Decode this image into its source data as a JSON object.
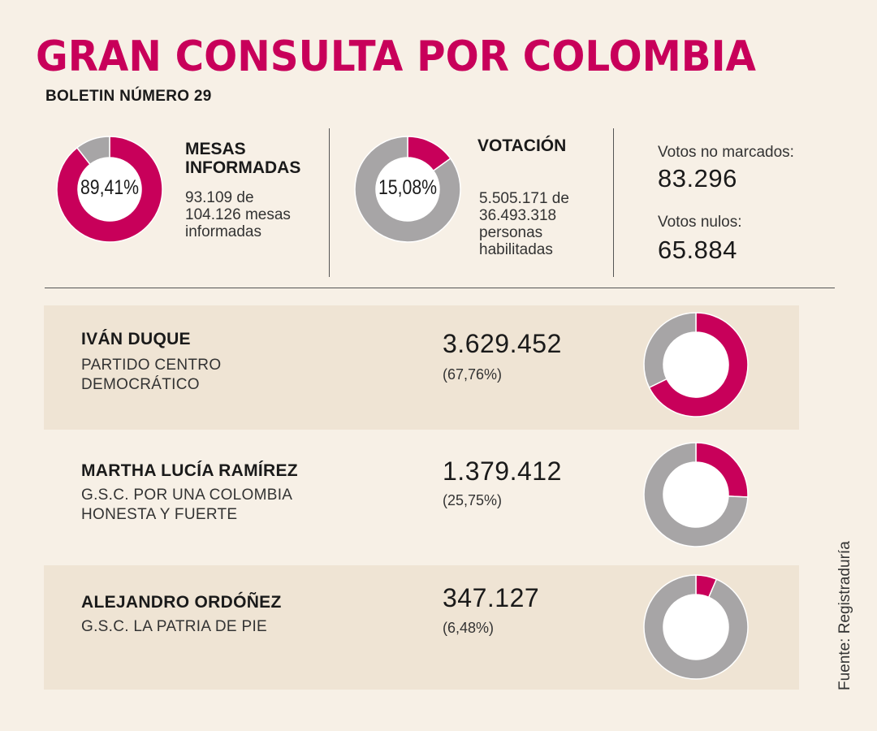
{
  "title": "GRAN CONSULTA POR COLOMBIA",
  "subtitle": "BOLETIN NÚMERO 29",
  "colors": {
    "accent": "#c8005a",
    "gray": "#a7a5a6",
    "background": "#f7f0e6",
    "band": "#efe4d4"
  },
  "mesas": {
    "heading_line1": "MESAS",
    "heading_line2": "INFORMADAS",
    "percent_label": "89,41%",
    "detail_line1": "93.109 de",
    "detail_line2": "104.126 mesas",
    "detail_line3": "informadas"
  },
  "votacion": {
    "heading": "VOTACIÓN",
    "percent_label": "15,08%",
    "detail_line1": "5.505.171 de",
    "detail_line2": "36.493.318",
    "detail_line3": "personas",
    "detail_line4": "habilitadas"
  },
  "otros": {
    "no_marcados_label": "Votos no marcados:",
    "no_marcados_value": "83.296",
    "nulos_label": "Votos nulos:",
    "nulos_value": "65.884"
  },
  "candidates": [
    {
      "name": "IVÁN DUQUE",
      "party_line1": "PARTIDO CENTRO",
      "party_line2": "DEMOCRÁTICO",
      "votes": "3.629.452",
      "percent_label": "(67,76%)"
    },
    {
      "name": "MARTHA LUCÍA RAMÍREZ",
      "party_line1": "G.S.C. POR UNA COLOMBIA",
      "party_line2": "HONESTA Y FUERTE",
      "votes": "1.379.412",
      "percent_label": "(25,75%)"
    },
    {
      "name": "ALEJANDRO ORDÓÑEZ",
      "party_line1": "G.S.C. LA PATRIA DE PIE",
      "party_line2": "",
      "votes": "347.127",
      "percent_label": "(6,48%)"
    }
  ],
  "source": "Fuente: Registraduría",
  "chart_data": [
    {
      "type": "pie",
      "categories": [
        "Mesas informadas",
        ""
      ],
      "values": [
        89.41,
        10.59
      ]
    },
    {
      "type": "pie",
      "categories": [
        "Votación",
        ""
      ],
      "values": [
        15.08,
        84.92
      ]
    },
    {
      "type": "pie",
      "categories": [
        "IVÁN DUQUE",
        ""
      ],
      "values": [
        67.76,
        32.24
      ]
    },
    {
      "type": "pie",
      "categories": [
        "MARTHA LUCÍA RAMÍREZ",
        ""
      ],
      "values": [
        25.75,
        74.25
      ]
    },
    {
      "type": "pie",
      "categories": [
        "ALEJANDRO ORDÓÑEZ",
        ""
      ],
      "values": [
        6.48,
        93.52
      ]
    }
  ]
}
